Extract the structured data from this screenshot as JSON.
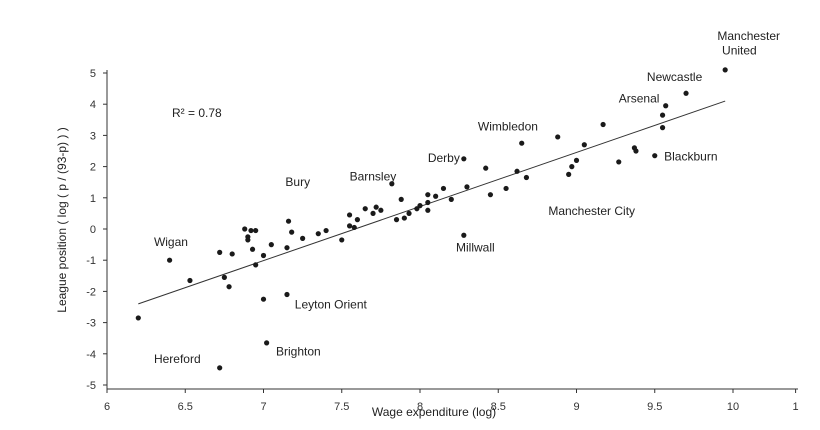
{
  "chart_data": {
    "type": "scatter",
    "xlabel": "Wage expenditure (log)",
    "ylabel": "League position ( log ( p / (93-p) ) )",
    "annotation": "R² = 0.78",
    "xlim": [
      6,
      10.4
    ],
    "ylim": [
      -5,
      5
    ],
    "x_ticks": [
      "6",
      "6.5",
      "7",
      "7.5",
      "8",
      "8.5",
      "9",
      "9.5",
      "10",
      "1"
    ],
    "y_ticks": [
      "5",
      "4",
      "3",
      "2",
      "1",
      "0",
      "-1",
      "-2",
      "-3",
      "-4",
      "-5"
    ],
    "trendline": {
      "x": [
        6.2,
        9.95
      ],
      "y": [
        -2.4,
        4.1
      ]
    },
    "labels": [
      {
        "text": "Manchester",
        "x": 9.9,
        "y": 6.05
      },
      {
        "text": "United",
        "x": 9.93,
        "y": 5.6
      },
      {
        "text": "Newcastle",
        "x": 9.45,
        "y": 4.75
      },
      {
        "text": "Arsenal",
        "x": 9.27,
        "y": 4.05
      },
      {
        "text": "Wimbledon",
        "x": 8.37,
        "y": 3.15
      },
      {
        "text": "Derby",
        "x": 8.05,
        "y": 2.15
      },
      {
        "text": "Blackburn",
        "x": 9.56,
        "y": 2.2
      },
      {
        "text": "Barnsley",
        "x": 7.55,
        "y": 1.55
      },
      {
        "text": "Bury",
        "x": 7.14,
        "y": 1.38
      },
      {
        "text": "Manchester City",
        "x": 8.82,
        "y": 0.45
      },
      {
        "text": "Wigan",
        "x": 6.3,
        "y": -0.55
      },
      {
        "text": "Millwall",
        "x": 8.23,
        "y": -0.72
      },
      {
        "text": "Leyton Orient",
        "x": 7.2,
        "y": -2.55
      },
      {
        "text": "Hereford",
        "x": 6.3,
        "y": -4.3
      },
      {
        "text": "Brighton",
        "x": 7.08,
        "y": -4.05
      }
    ],
    "points": [
      [
        9.95,
        5.1
      ],
      [
        9.7,
        4.35
      ],
      [
        9.57,
        3.95
      ],
      [
        9.55,
        3.65
      ],
      [
        9.55,
        3.25
      ],
      [
        9.5,
        2.35
      ],
      [
        8.28,
        2.25
      ],
      [
        8.88,
        2.95
      ],
      [
        9.17,
        3.35
      ],
      [
        8.65,
        2.75
      ],
      [
        9.05,
        2.7
      ],
      [
        9.0,
        2.2
      ],
      [
        8.97,
        2.0
      ],
      [
        8.95,
        1.75
      ],
      [
        9.27,
        2.15
      ],
      [
        9.37,
        2.6
      ],
      [
        9.38,
        2.5
      ],
      [
        8.62,
        1.85
      ],
      [
        8.68,
        1.65
      ],
      [
        8.55,
        1.3
      ],
      [
        8.45,
        1.1
      ],
      [
        8.42,
        1.95
      ],
      [
        8.3,
        1.35
      ],
      [
        8.15,
        1.3
      ],
      [
        8.1,
        1.05
      ],
      [
        8.05,
        1.1
      ],
      [
        8.05,
        0.85
      ],
      [
        8.05,
        0.6
      ],
      [
        8.0,
        0.75
      ],
      [
        7.98,
        0.65
      ],
      [
        7.93,
        0.5
      ],
      [
        7.9,
        0.35
      ],
      [
        7.88,
        0.95
      ],
      [
        7.85,
        0.3
      ],
      [
        7.82,
        1.45
      ],
      [
        7.75,
        0.6
      ],
      [
        7.7,
        0.5
      ],
      [
        7.72,
        0.7
      ],
      [
        7.65,
        0.65
      ],
      [
        7.6,
        0.3
      ],
      [
        7.55,
        0.1
      ],
      [
        7.5,
        -0.35
      ],
      [
        7.4,
        -0.05
      ],
      [
        7.35,
        -0.15
      ],
      [
        7.25,
        -0.3
      ],
      [
        7.16,
        0.25
      ],
      [
        7.18,
        -0.1
      ],
      [
        7.15,
        -0.6
      ],
      [
        7.05,
        -0.5
      ],
      [
        7.0,
        -0.85
      ],
      [
        6.95,
        -1.15
      ],
      [
        6.93,
        -0.65
      ],
      [
        6.9,
        -0.25
      ],
      [
        6.9,
        -0.35
      ],
      [
        6.92,
        -0.05
      ],
      [
        6.88,
        0.0
      ],
      [
        6.72,
        -0.75
      ],
      [
        6.75,
        -1.55
      ],
      [
        6.78,
        -1.85
      ],
      [
        6.8,
        -0.8
      ],
      [
        6.95,
        -0.05
      ],
      [
        6.4,
        -1.0
      ],
      [
        6.53,
        -1.65
      ],
      [
        6.2,
        -2.85
      ],
      [
        6.72,
        -4.45
      ],
      [
        7.0,
        -2.25
      ],
      [
        7.15,
        -2.1
      ],
      [
        7.02,
        -3.65
      ],
      [
        8.28,
        -0.2
      ],
      [
        7.55,
        0.45
      ],
      [
        7.58,
        0.05
      ],
      [
        8.2,
        0.95
      ]
    ]
  }
}
